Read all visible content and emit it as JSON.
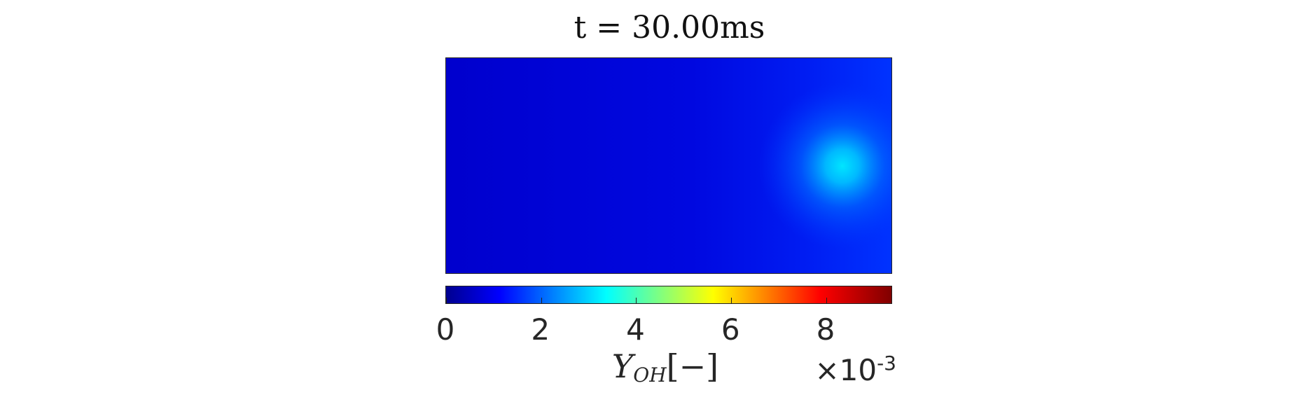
{
  "chart_data": {
    "type": "heatmap",
    "title": "t = 30.00ms",
    "colormap": "jet",
    "colorbar": {
      "label_main": "Y",
      "label_sub": "OH",
      "label_unit": "[−]",
      "range": [
        0,
        0.0094
      ],
      "ticks": [
        "0",
        "2",
        "4",
        "6",
        "8"
      ],
      "tick_values": [
        0,
        2,
        4,
        6,
        8
      ],
      "range_display": [
        0,
        9.4
      ],
      "scale_prefix": "×10",
      "scale_exponent": "-3"
    },
    "field": {
      "min_left_value": 0.0009,
      "max_right_value": 0.0016,
      "hotspot_value": 0.0034,
      "hotspot_location": "right, vertical center"
    }
  }
}
